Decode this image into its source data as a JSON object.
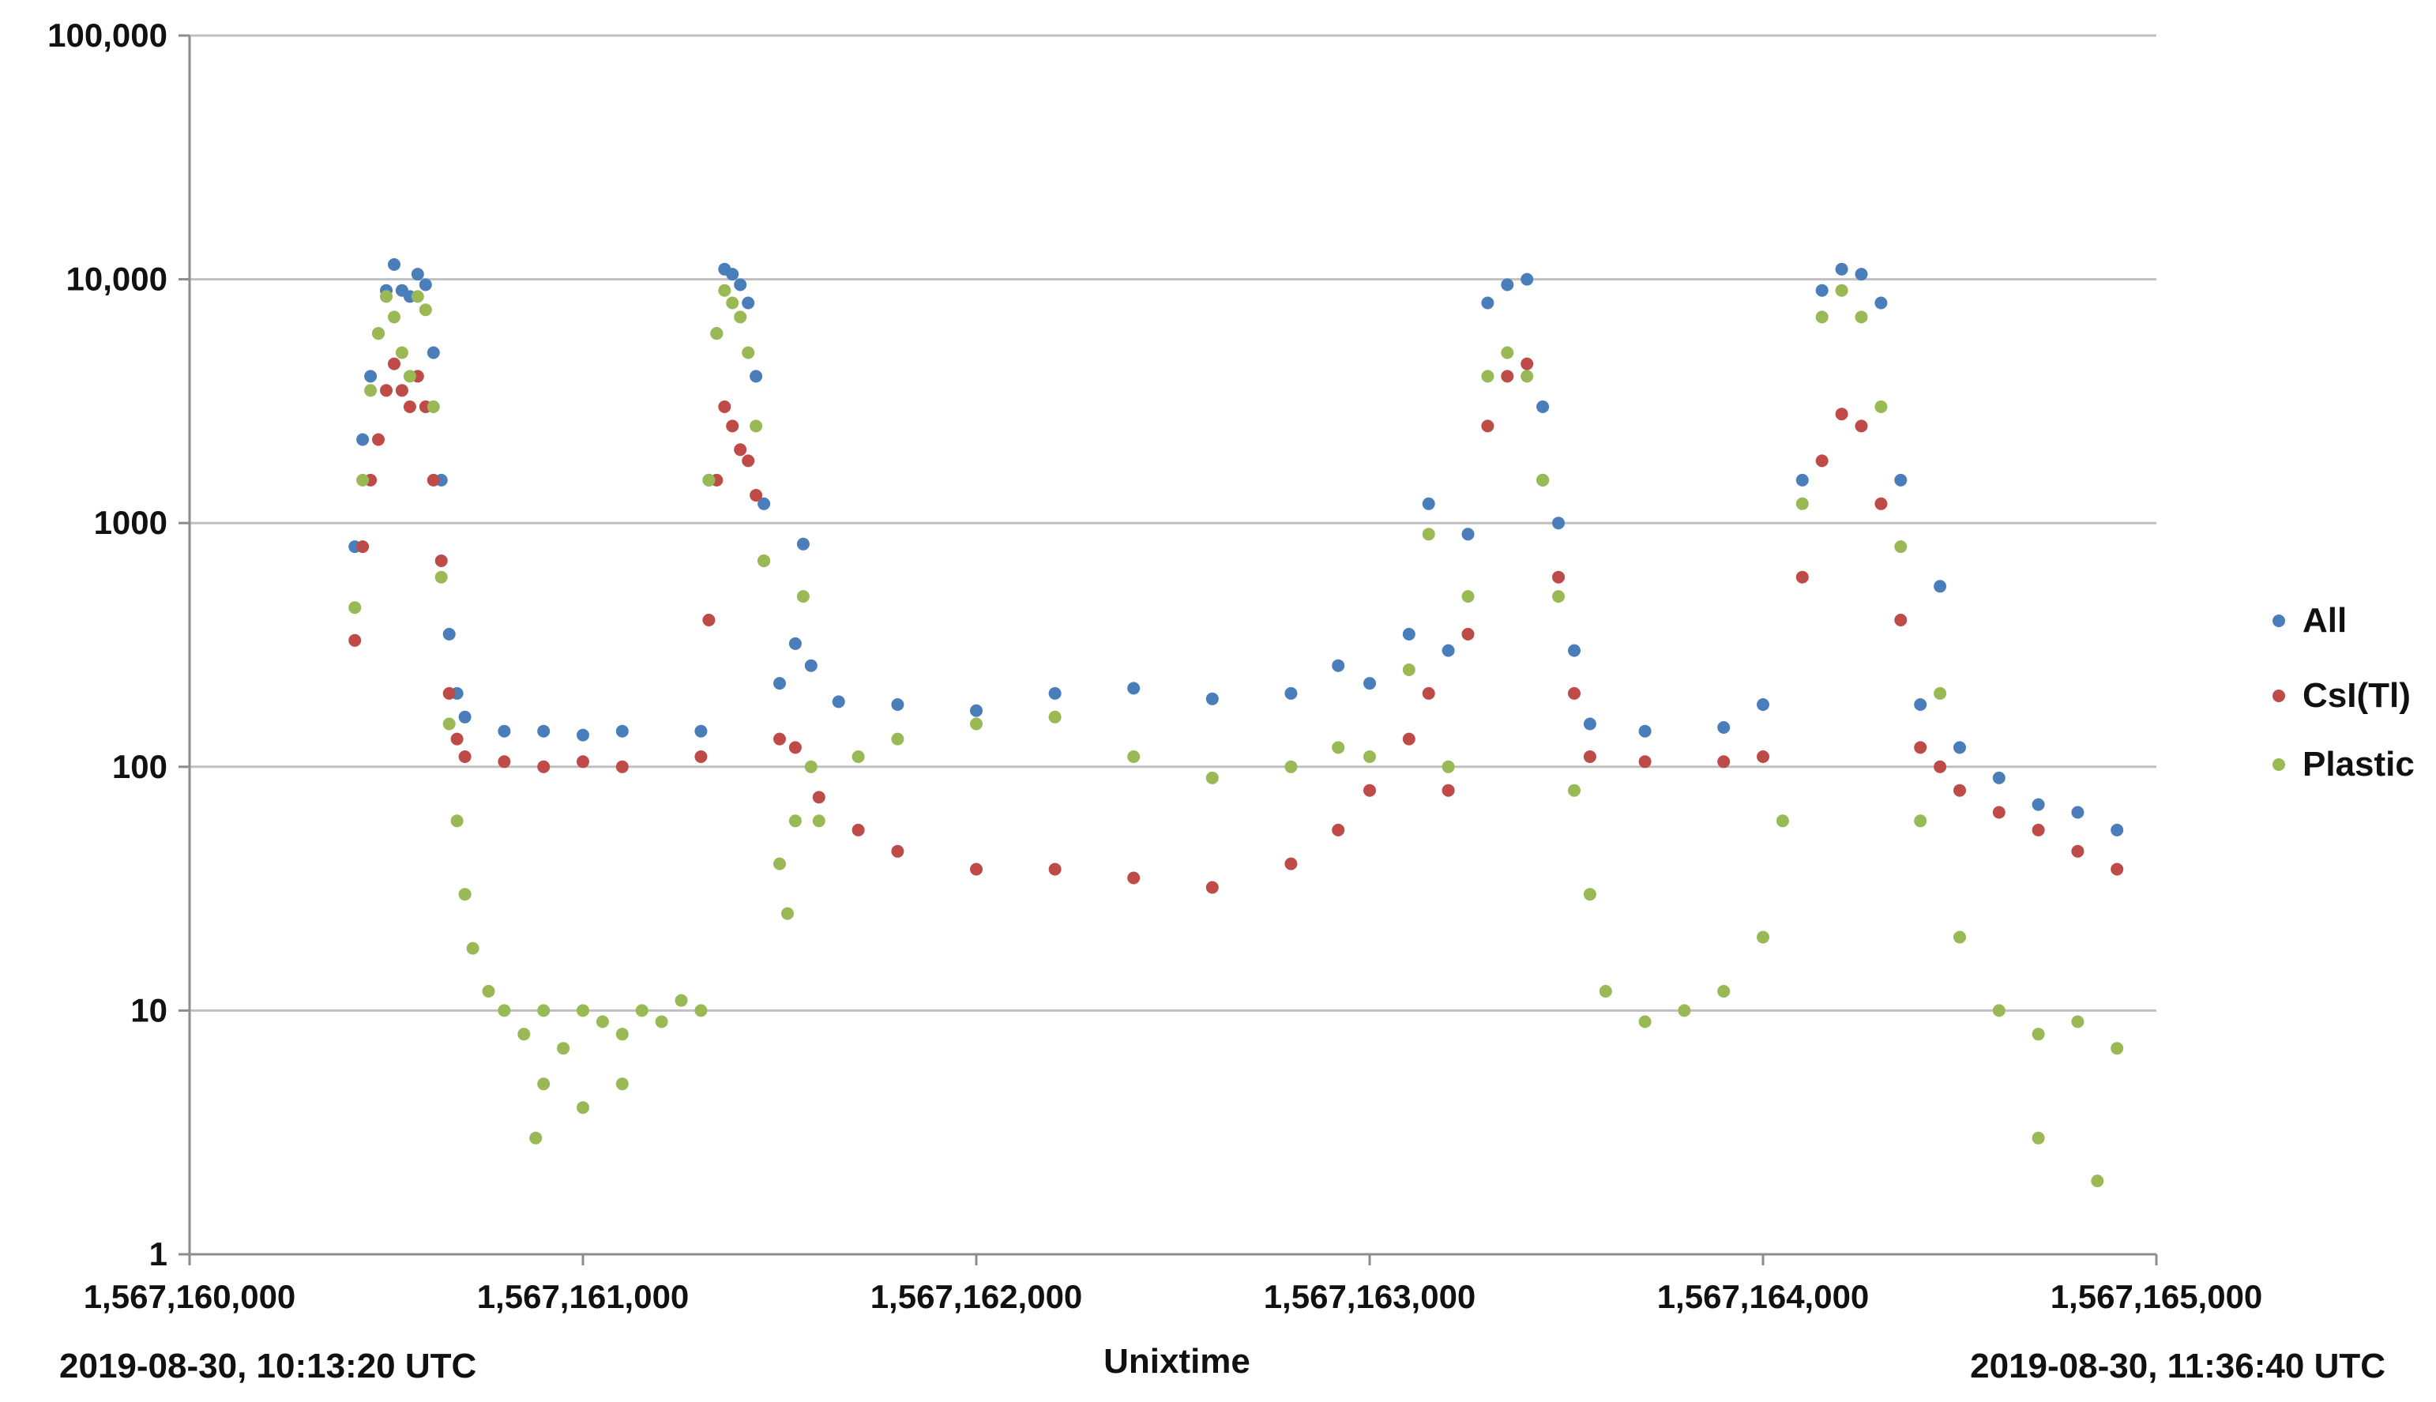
{
  "chart_data": {
    "type": "scatter",
    "title": "",
    "xlabel": "Unixtime",
    "ylabel": "",
    "yscale": "log",
    "xlim": [
      1567160000,
      1567165000
    ],
    "ylim": [
      1,
      100000
    ],
    "grid": true,
    "legend_position": "right",
    "x_ticks": [
      1567160000,
      1567161000,
      1567162000,
      1567163000,
      1567164000,
      1567165000
    ],
    "x_tick_labels": [
      "1,567,160,000",
      "1,567,161,000",
      "1,567,162,000",
      "1,567,163,000",
      "1,567,164,000",
      "1,567,165,000"
    ],
    "y_ticks": [
      1,
      10,
      100,
      1000,
      10000,
      100000
    ],
    "y_tick_labels": [
      "1",
      "10",
      "100",
      "1000",
      "10,000",
      "100,000"
    ],
    "annotations": {
      "start_time": "2019-08-30, 10:13:20 UTC",
      "end_time": "2019-08-30, 11:36:40 UTC"
    },
    "series": [
      {
        "name": "All",
        "color": "#4a7ebb",
        "points": [
          [
            1567160420,
            800
          ],
          [
            1567160440,
            2200
          ],
          [
            1567160460,
            4000
          ],
          [
            1567160480,
            6000
          ],
          [
            1567160500,
            9000
          ],
          [
            1567160520,
            11500
          ],
          [
            1567160540,
            9000
          ],
          [
            1567160560,
            8500
          ],
          [
            1567160580,
            10500
          ],
          [
            1567160600,
            9500
          ],
          [
            1567160620,
            5000
          ],
          [
            1567160640,
            1500
          ],
          [
            1567160660,
            350
          ],
          [
            1567160680,
            200
          ],
          [
            1567160700,
            160
          ],
          [
            1567160800,
            140
          ],
          [
            1567160900,
            140
          ],
          [
            1567161000,
            135
          ],
          [
            1567161100,
            140
          ],
          [
            1567161300,
            140
          ],
          [
            1567161320,
            1500
          ],
          [
            1567161340,
            6000
          ],
          [
            1567161360,
            11000
          ],
          [
            1567161380,
            10500
          ],
          [
            1567161400,
            9500
          ],
          [
            1567161420,
            8000
          ],
          [
            1567161440,
            4000
          ],
          [
            1567161460,
            1200
          ],
          [
            1567161500,
            220
          ],
          [
            1567161540,
            320
          ],
          [
            1567161560,
            820
          ],
          [
            1567161580,
            260
          ],
          [
            1567161650,
            185
          ],
          [
            1567161800,
            180
          ],
          [
            1567162000,
            170
          ],
          [
            1567162200,
            200
          ],
          [
            1567162400,
            210
          ],
          [
            1567162600,
            190
          ],
          [
            1567162800,
            200
          ],
          [
            1567162920,
            260
          ],
          [
            1567163000,
            220
          ],
          [
            1567163100,
            350
          ],
          [
            1567163150,
            1200
          ],
          [
            1567163200,
            300
          ],
          [
            1567163250,
            900
          ],
          [
            1567163300,
            8000
          ],
          [
            1567163350,
            9500
          ],
          [
            1567163400,
            10000
          ],
          [
            1567163440,
            3000
          ],
          [
            1567163480,
            1000
          ],
          [
            1567163520,
            300
          ],
          [
            1567163560,
            150
          ],
          [
            1567163700,
            140
          ],
          [
            1567163900,
            145
          ],
          [
            1567164000,
            180
          ],
          [
            1567164100,
            1500
          ],
          [
            1567164150,
            9000
          ],
          [
            1567164200,
            11000
          ],
          [
            1567164250,
            10500
          ],
          [
            1567164300,
            8000
          ],
          [
            1567164350,
            1500
          ],
          [
            1567164400,
            180
          ],
          [
            1567164450,
            550
          ],
          [
            1567164500,
            120
          ],
          [
            1567164600,
            90
          ],
          [
            1567164700,
            70
          ],
          [
            1567164800,
            65
          ],
          [
            1567164900,
            55
          ]
        ]
      },
      {
        "name": "CsI(Tl)",
        "color": "#be4b48",
        "points": [
          [
            1567160420,
            330
          ],
          [
            1567160440,
            800
          ],
          [
            1567160460,
            1500
          ],
          [
            1567160480,
            2200
          ],
          [
            1567160500,
            3500
          ],
          [
            1567160520,
            4500
          ],
          [
            1567160540,
            3500
          ],
          [
            1567160560,
            3000
          ],
          [
            1567160580,
            4000
          ],
          [
            1567160600,
            3000
          ],
          [
            1567160620,
            1500
          ],
          [
            1567160640,
            700
          ],
          [
            1567160660,
            200
          ],
          [
            1567160680,
            130
          ],
          [
            1567160700,
            110
          ],
          [
            1567160800,
            105
          ],
          [
            1567160900,
            100
          ],
          [
            1567161000,
            105
          ],
          [
            1567161100,
            100
          ],
          [
            1567161300,
            110
          ],
          [
            1567161320,
            400
          ],
          [
            1567161340,
            1500
          ],
          [
            1567161360,
            3000
          ],
          [
            1567161380,
            2500
          ],
          [
            1567161400,
            2000
          ],
          [
            1567161420,
            1800
          ],
          [
            1567161440,
            1300
          ],
          [
            1567161460,
            700
          ],
          [
            1567161500,
            130
          ],
          [
            1567161540,
            120
          ],
          [
            1567161600,
            75
          ],
          [
            1567161700,
            55
          ],
          [
            1567161800,
            45
          ],
          [
            1567162000,
            38
          ],
          [
            1567162200,
            38
          ],
          [
            1567162400,
            35
          ],
          [
            1567162600,
            32
          ],
          [
            1567162800,
            40
          ],
          [
            1567162920,
            55
          ],
          [
            1567163000,
            80
          ],
          [
            1567163100,
            130
          ],
          [
            1567163150,
            200
          ],
          [
            1567163200,
            80
          ],
          [
            1567163250,
            350
          ],
          [
            1567163300,
            2500
          ],
          [
            1567163350,
            4000
          ],
          [
            1567163400,
            4500
          ],
          [
            1567163440,
            1500
          ],
          [
            1567163480,
            600
          ],
          [
            1567163520,
            200
          ],
          [
            1567163560,
            110
          ],
          [
            1567163700,
            105
          ],
          [
            1567163900,
            105
          ],
          [
            1567164000,
            110
          ],
          [
            1567164100,
            600
          ],
          [
            1567164150,
            1800
          ],
          [
            1567164200,
            2800
          ],
          [
            1567164250,
            2500
          ],
          [
            1567164300,
            1200
          ],
          [
            1567164350,
            400
          ],
          [
            1567164400,
            120
          ],
          [
            1567164450,
            100
          ],
          [
            1567164500,
            80
          ],
          [
            1567164600,
            65
          ],
          [
            1567164700,
            55
          ],
          [
            1567164800,
            45
          ],
          [
            1567164900,
            38
          ]
        ]
      },
      {
        "name": "Plastic",
        "color": "#98b954",
        "points": [
          [
            1567160420,
            450
          ],
          [
            1567160440,
            1500
          ],
          [
            1567160460,
            3500
          ],
          [
            1567160480,
            6000
          ],
          [
            1567160500,
            8500
          ],
          [
            1567160520,
            7000
          ],
          [
            1567160540,
            5000
          ],
          [
            1567160560,
            4000
          ],
          [
            1567160580,
            8500
          ],
          [
            1567160600,
            7500
          ],
          [
            1567160620,
            3000
          ],
          [
            1567160640,
            600
          ],
          [
            1567160660,
            150
          ],
          [
            1567160680,
            60
          ],
          [
            1567160700,
            30
          ],
          [
            1567160720,
            18
          ],
          [
            1567160760,
            12
          ],
          [
            1567160800,
            10
          ],
          [
            1567160850,
            8
          ],
          [
            1567160900,
            10
          ],
          [
            1567160950,
            7
          ],
          [
            1567161000,
            10
          ],
          [
            1567161050,
            9
          ],
          [
            1567161100,
            8
          ],
          [
            1567161150,
            10
          ],
          [
            1567161200,
            9
          ],
          [
            1567161250,
            11
          ],
          [
            1567161300,
            10
          ],
          [
            1567160900,
            5
          ],
          [
            1567161000,
            4
          ],
          [
            1567161100,
            5
          ],
          [
            1567160880,
            3
          ],
          [
            1567161320,
            1500
          ],
          [
            1567161340,
            6000
          ],
          [
            1567161360,
            9000
          ],
          [
            1567161380,
            8000
          ],
          [
            1567161400,
            7000
          ],
          [
            1567161420,
            5000
          ],
          [
            1567161440,
            2500
          ],
          [
            1567161460,
            700
          ],
          [
            1567161500,
            40
          ],
          [
            1567161520,
            25
          ],
          [
            1567161540,
            60
          ],
          [
            1567161560,
            500
          ],
          [
            1567161580,
            100
          ],
          [
            1567161600,
            60
          ],
          [
            1567161700,
            110
          ],
          [
            1567161800,
            130
          ],
          [
            1567162000,
            150
          ],
          [
            1567162200,
            160
          ],
          [
            1567162400,
            110
          ],
          [
            1567162600,
            90
          ],
          [
            1567162800,
            100
          ],
          [
            1567162920,
            120
          ],
          [
            1567163000,
            110
          ],
          [
            1567163100,
            250
          ],
          [
            1567163150,
            900
          ],
          [
            1567163200,
            100
          ],
          [
            1567163250,
            500
          ],
          [
            1567163300,
            4000
          ],
          [
            1567163350,
            5000
          ],
          [
            1567163400,
            4000
          ],
          [
            1567163440,
            1500
          ],
          [
            1567163480,
            500
          ],
          [
            1567163520,
            80
          ],
          [
            1567163560,
            30
          ],
          [
            1567163600,
            12
          ],
          [
            1567163700,
            9
          ],
          [
            1567163800,
            10
          ],
          [
            1567163900,
            12
          ],
          [
            1567164000,
            20
          ],
          [
            1567164050,
            60
          ],
          [
            1567164100,
            1200
          ],
          [
            1567164150,
            7000
          ],
          [
            1567164200,
            9000
          ],
          [
            1567164250,
            7000
          ],
          [
            1567164300,
            3000
          ],
          [
            1567164350,
            800
          ],
          [
            1567164400,
            60
          ],
          [
            1567164450,
            200
          ],
          [
            1567164500,
            20
          ],
          [
            1567164600,
            10
          ],
          [
            1567164700,
            8
          ],
          [
            1567164800,
            9
          ],
          [
            1567164900,
            7
          ],
          [
            1567164850,
            2
          ],
          [
            1567164700,
            3
          ]
        ]
      }
    ]
  }
}
